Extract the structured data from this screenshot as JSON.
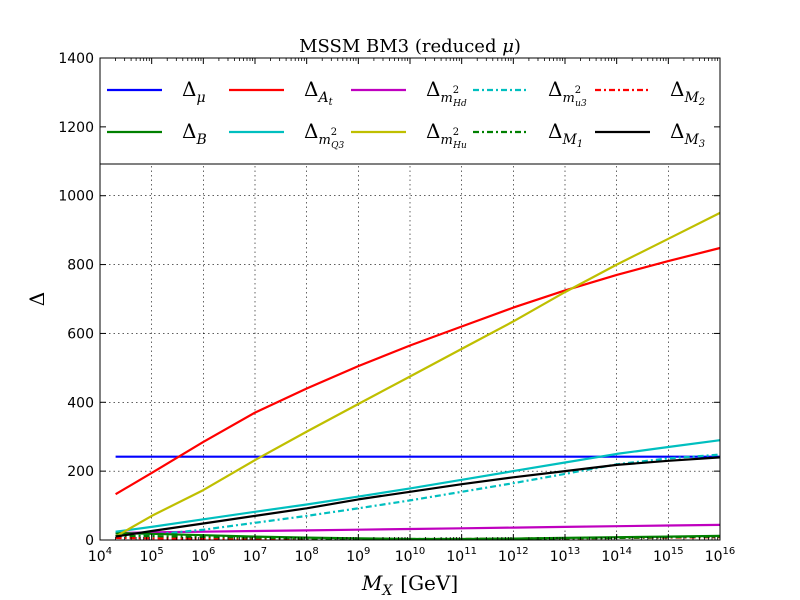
{
  "chart_data": {
    "type": "line",
    "title": "MSSM BM3 (reduced μ)",
    "xlabel": "M_X [GeV]",
    "ylabel": "Δ",
    "x_scale": "log",
    "xlim": [
      10000,
      10000000000000000
    ],
    "ylim": [
      0,
      1400
    ],
    "x_ticks": [
      {
        "value": 10000,
        "base": "10",
        "exp": "4"
      },
      {
        "value": 100000,
        "base": "10",
        "exp": "5"
      },
      {
        "value": 1000000,
        "base": "10",
        "exp": "6"
      },
      {
        "value": 10000000,
        "base": "10",
        "exp": "7"
      },
      {
        "value": 100000000,
        "base": "10",
        "exp": "8"
      },
      {
        "value": 1000000000,
        "base": "10",
        "exp": "9"
      },
      {
        "value": 10000000000,
        "base": "10",
        "exp": "10"
      },
      {
        "value": 100000000000,
        "base": "10",
        "exp": "11"
      },
      {
        "value": 1000000000000,
        "base": "10",
        "exp": "12"
      },
      {
        "value": 10000000000000,
        "base": "10",
        "exp": "13"
      },
      {
        "value": 100000000000000,
        "base": "10",
        "exp": "14"
      },
      {
        "value": 1000000000000000,
        "base": "10",
        "exp": "15"
      },
      {
        "value": 10000000000000000,
        "base": "10",
        "exp": "16"
      }
    ],
    "y_ticks": [
      0,
      200,
      400,
      600,
      800,
      1000,
      1200,
      1400
    ],
    "y_tick_labels": [
      "0",
      "200",
      "400",
      "600",
      "800",
      "1000",
      "1200",
      "1400"
    ],
    "grid": true,
    "legend_placement": "top",
    "x": [
      20000,
      100000,
      1000000,
      10000000,
      100000000,
      1000000000,
      10000000000,
      100000000000,
      1000000000000,
      10000000000000,
      100000000000000,
      1000000000000000,
      10000000000000000
    ],
    "series": [
      {
        "name": "Δ_μ",
        "main": "Δ",
        "sub": "μ",
        "sup": "",
        "subsub": "",
        "color": "#0000ff",
        "dash": "solid",
        "values": [
          242,
          242,
          242,
          242,
          242,
          242,
          242,
          242,
          242,
          242,
          242,
          242,
          242
        ]
      },
      {
        "name": "Δ_At",
        "main": "Δ",
        "sub": "A",
        "sup": "",
        "subsub": "t",
        "color": "#ff0000",
        "dash": "solid",
        "values": [
          133,
          195,
          285,
          370,
          440,
          505,
          565,
          620,
          675,
          725,
          770,
          810,
          848
        ]
      },
      {
        "name": "Δ_m²Hd",
        "main": "Δ",
        "sub": "m",
        "sup": "2",
        "subsub": "Hd",
        "color": "#bf00bf",
        "dash": "solid",
        "values": [
          20,
          22,
          24,
          26,
          28,
          30,
          32,
          34,
          36,
          38,
          40,
          42,
          44
        ]
      },
      {
        "name": "Δ_m²u3",
        "main": "Δ",
        "sub": "m",
        "sup": "2",
        "subsub": "u3",
        "color": "#00bfbf",
        "dash": "dashdot",
        "values": [
          8,
          15,
          30,
          50,
          70,
          92,
          115,
          140,
          165,
          192,
          220,
          237,
          248
        ]
      },
      {
        "name": "Δ_M2",
        "main": "Δ",
        "sub": "M",
        "sup": "",
        "subsub": "2",
        "color": "#ff0000",
        "dash": "dashdot",
        "values": [
          6,
          5,
          4,
          3,
          2,
          2,
          2,
          3,
          4,
          5,
          6,
          7,
          8
        ]
      },
      {
        "name": "Δ_B",
        "main": "Δ",
        "sub": "B",
        "sup": "",
        "subsub": "",
        "color": "#008000",
        "dash": "solid",
        "values": [
          20,
          18,
          14,
          10,
          7,
          5,
          3,
          3,
          4,
          6,
          8,
          10,
          12
        ]
      },
      {
        "name": "Δ_m²Q3",
        "main": "Δ",
        "sub": "m",
        "sup": "2",
        "subsub": "Q3",
        "color": "#00bfbf",
        "dash": "solid",
        "values": [
          24,
          38,
          60,
          82,
          103,
          126,
          150,
          175,
          200,
          225,
          250,
          270,
          290
        ]
      },
      {
        "name": "Δ_m²Hu",
        "main": "Δ",
        "sub": "m",
        "sup": "2",
        "subsub": "Hu",
        "color": "#bfbf00",
        "dash": "solid",
        "values": [
          10,
          70,
          145,
          232,
          315,
          395,
          475,
          555,
          635,
          720,
          800,
          875,
          950
        ]
      },
      {
        "name": "Δ_M1",
        "main": "Δ",
        "sub": "M",
        "sup": "",
        "subsub": "1",
        "color": "#008000",
        "dash": "dashdot",
        "values": [
          12,
          11,
          9,
          7,
          5,
          4,
          3,
          3,
          4,
          5,
          6,
          8,
          10
        ]
      },
      {
        "name": "Δ_M3",
        "main": "Δ",
        "sub": "M",
        "sup": "",
        "subsub": "3",
        "color": "#000000",
        "dash": "solid",
        "values": [
          10,
          26,
          48,
          70,
          92,
          118,
          140,
          162,
          182,
          200,
          218,
          230,
          240
        ]
      }
    ]
  }
}
